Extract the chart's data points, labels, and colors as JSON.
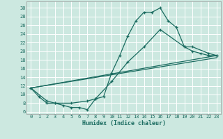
{
  "xlabel": "Humidex (Indice chaleur)",
  "ylabel": "",
  "bg_color": "#cce8e0",
  "grid_color": "#b0d4cc",
  "line_color": "#1a6b60",
  "xlim": [
    -0.5,
    23.5
  ],
  "ylim": [
    5.5,
    31.5
  ],
  "xticks": [
    0,
    1,
    2,
    3,
    4,
    5,
    6,
    7,
    8,
    9,
    10,
    11,
    12,
    13,
    14,
    15,
    16,
    17,
    18,
    19,
    20,
    21,
    22,
    23
  ],
  "yticks": [
    6,
    8,
    10,
    12,
    14,
    16,
    18,
    20,
    22,
    24,
    26,
    28,
    30
  ],
  "series": [
    {
      "x": [
        0,
        1,
        2,
        3,
        4,
        5,
        6,
        7,
        8,
        9,
        10,
        11,
        12,
        13,
        14,
        15,
        16,
        17,
        18,
        19,
        20,
        21,
        22,
        23
      ],
      "y": [
        11.5,
        9.5,
        8,
        8,
        7.5,
        7,
        7,
        6.5,
        9,
        9.5,
        15,
        19,
        23.5,
        27,
        29,
        29,
        30,
        27,
        25.5,
        21,
        20,
        19.5,
        19,
        19
      ],
      "marker": true
    },
    {
      "x": [
        0,
        2,
        3,
        5,
        7,
        8,
        10,
        12,
        14,
        16,
        19,
        20,
        22,
        23
      ],
      "y": [
        11.5,
        8.5,
        8,
        8,
        8.5,
        9,
        13,
        17.5,
        21,
        25,
        21,
        21,
        19.5,
        19
      ],
      "marker": true
    },
    {
      "x": [
        0,
        23
      ],
      "y": [
        11.5,
        19
      ],
      "marker": false
    },
    {
      "x": [
        0,
        23
      ],
      "y": [
        11.5,
        18.5
      ],
      "marker": false
    }
  ]
}
